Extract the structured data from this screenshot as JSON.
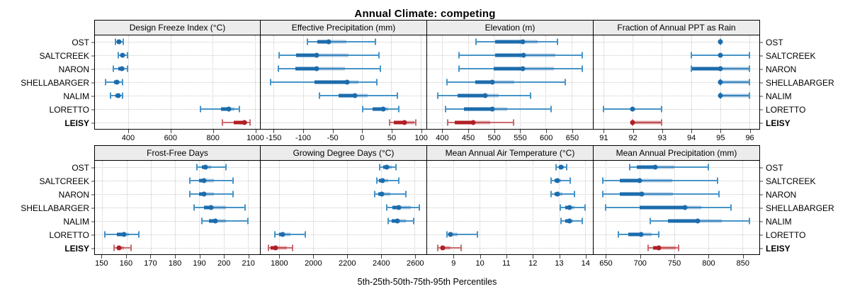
{
  "title": "Annual Climate: competing",
  "xlabel": "5th-25th-50th-75th-95th Percentiles",
  "bold_site": "LEISY",
  "colors": {
    "blue_dark": "#1c6cac",
    "blue_mid": "#4694c8",
    "blue_band": "rgba(31,110,176,0.35)",
    "red_dark": "#b01f24",
    "red_mid": "#c9696c",
    "red_band": "rgba(176,31,36,0.35)",
    "strip_bg": "#ececec",
    "grid": "#c9c9c9",
    "border": "#000000"
  },
  "chart_data": {
    "type": "dotplot",
    "statistic_labels": [
      "5th",
      "25th",
      "50th",
      "75th",
      "95th"
    ],
    "sites": [
      "OST",
      "SALTCREEK",
      "NARON",
      "SHELLABARGER",
      "NALIM",
      "LORETTO",
      "LEISY"
    ],
    "legend_position": "none",
    "grid": "dotted",
    "panels": [
      {
        "row": "top",
        "title": "Design Freeze Index (°C)",
        "ticks": [
          400,
          600,
          800,
          1000
        ],
        "range": [
          240,
          1025
        ],
        "values": {
          "OST": [
            337,
            345,
            355,
            363,
            375
          ],
          "SALTCREEK": [
            350,
            360,
            370,
            381,
            395
          ],
          "NARON": [
            326,
            350,
            367,
            381,
            395
          ],
          "SHELLABARGER": [
            289,
            330,
            345,
            357,
            370
          ],
          "NALIM": [
            315,
            337,
            350,
            360,
            370
          ],
          "LORETTO": [
            741,
            840,
            876,
            905,
            928
          ],
          "LEISY": [
            848,
            900,
            952,
            965,
            978
          ]
        }
      },
      {
        "row": "top",
        "title": "Effective Precipitation (mm)",
        "ticks": [
          -150,
          -100,
          -50,
          0,
          50,
          100
        ],
        "range": [
          -172,
          110
        ],
        "values": {
          "OST": [
            -92,
            -76,
            -56,
            -26,
            23
          ],
          "SALTCREEK": [
            -141,
            -112,
            -77,
            -22,
            29
          ],
          "NARON": [
            -142,
            -113,
            -77,
            -28,
            32
          ],
          "SHELLABARGER": [
            -155,
            -80,
            -25,
            -6,
            26
          ],
          "NALIM": [
            -72,
            -40,
            -12,
            10,
            61
          ],
          "LORETTO": [
            2,
            19,
            37,
            45,
            63
          ],
          "LEISY": [
            47,
            55,
            73,
            89,
            92
          ]
        }
      },
      {
        "row": "top",
        "title": "Elevation (m)",
        "ticks": [
          400,
          450,
          500,
          550,
          600,
          650
        ],
        "range": [
          371,
          691
        ],
        "values": {
          "OST": [
            465,
            502,
            556,
            584,
            623
          ],
          "SALTCREEK": [
            433,
            502,
            557,
            618,
            671
          ],
          "NARON": [
            432,
            500,
            555,
            616,
            670
          ],
          "SHELLABARGER": [
            409,
            464,
            497,
            539,
            638
          ],
          "NALIM": [
            391,
            430,
            483,
            509,
            571
          ],
          "LORETTO": [
            406,
            442,
            497,
            525,
            610
          ],
          "LEISY": [
            410,
            425,
            460,
            493,
            538
          ]
        }
      },
      {
        "row": "top",
        "title": "Fraction of Annual PPT as Rain",
        "ticks": [
          91,
          92,
          93,
          94,
          95,
          96
        ],
        "range": [
          90.65,
          96.35
        ],
        "values": {
          "OST": [
            95,
            95,
            95,
            95,
            95
          ],
          "SALTCREEK": [
            94,
            95,
            95,
            95,
            96
          ],
          "NARON": [
            94,
            94,
            95,
            96,
            96
          ],
          "SHELLABARGER": [
            95,
            95,
            95,
            96,
            96
          ],
          "NALIM": [
            95,
            95,
            95,
            96,
            96
          ],
          "LORETTO": [
            91,
            92,
            92,
            92,
            93
          ],
          "LEISY": [
            92,
            92,
            92,
            93,
            93
          ]
        }
      },
      {
        "row": "bottom",
        "title": "Frost-Free Days",
        "ticks": [
          150,
          160,
          170,
          180,
          190,
          200,
          210
        ],
        "range": [
          147,
          215
        ],
        "values": {
          "OST": [
            189,
            191,
            192.5,
            195,
            201
          ],
          "SALTCREEK": [
            186,
            190,
            192,
            196,
            204
          ],
          "NARON": [
            186,
            190,
            192,
            196,
            204
          ],
          "SHELLABARGER": [
            188,
            192,
            195,
            201,
            209
          ],
          "NALIM": [
            191,
            194,
            196.5,
            201,
            210
          ],
          "LORETTO": [
            151,
            156,
            159,
            161,
            165
          ],
          "LEISY": [
            155,
            156,
            157,
            159,
            162
          ]
        }
      },
      {
        "row": "bottom",
        "title": "Growing Degree Days (°C)",
        "ticks": [
          1800,
          2000,
          2200,
          2400,
          2600
        ],
        "range": [
          1690,
          2670
        ],
        "values": {
          "OST": [
            2395,
            2415,
            2435,
            2465,
            2490
          ],
          "SALTCREEK": [
            2375,
            2390,
            2410,
            2445,
            2505
          ],
          "NARON": [
            2365,
            2385,
            2407,
            2457,
            2550
          ],
          "SHELLABARGER": [
            2435,
            2470,
            2505,
            2580,
            2630
          ],
          "NALIM": [
            2445,
            2465,
            2500,
            2550,
            2595
          ],
          "LORETTO": [
            1775,
            1800,
            1820,
            1865,
            1955
          ],
          "LEISY": [
            1735,
            1750,
            1780,
            1843,
            1880
          ]
        }
      },
      {
        "row": "bottom",
        "title": "Mean Annual Air Temperature (°C)",
        "ticks": [
          9,
          10,
          11,
          12,
          13,
          14
        ],
        "range": [
          8.0,
          14.3
        ],
        "values": {
          "OST": [
            12.9,
            13.0,
            13.1,
            13.2,
            13.3
          ],
          "SALTCREEK": [
            12.7,
            12.85,
            12.95,
            13.1,
            13.45
          ],
          "NARON": [
            12.7,
            12.85,
            12.95,
            13.15,
            13.6
          ],
          "SHELLABARGER": [
            13.05,
            13.25,
            13.4,
            13.6,
            14.0
          ],
          "NALIM": [
            13.1,
            13.25,
            13.4,
            13.55,
            13.9
          ],
          "LORETTO": [
            8.75,
            8.8,
            8.9,
            9.15,
            9.9
          ],
          "LEISY": [
            8.4,
            8.5,
            8.6,
            8.9,
            9.3
          ]
        }
      },
      {
        "row": "bottom",
        "title": "Mean Annual Precipitation (mm)",
        "ticks": [
          650,
          700,
          750,
          800,
          850
        ],
        "range": [
          632,
          875
        ],
        "values": {
          "OST": [
            685,
            695,
            722,
            750,
            800
          ],
          "SALTCREEK": [
            646,
            670,
            700,
            747,
            814
          ],
          "NARON": [
            646,
            670,
            703,
            748,
            816
          ],
          "SHELLABARGER": [
            650,
            700,
            766,
            790,
            833
          ],
          "NALIM": [
            715,
            741,
            785,
            820,
            860
          ],
          "LORETTO": [
            668,
            683,
            702,
            717,
            728
          ],
          "LEISY": [
            712,
            719,
            728,
            752,
            757
          ]
        }
      }
    ]
  }
}
